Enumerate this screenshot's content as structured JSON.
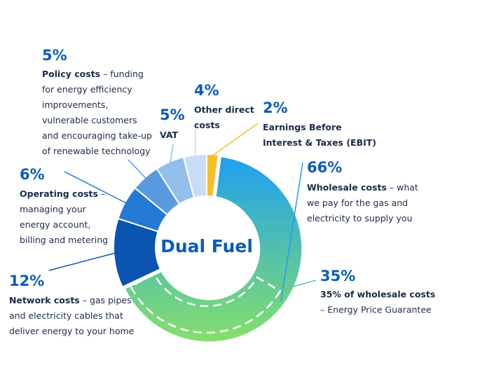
{
  "chart_data": {
    "type": "donut",
    "center_label": "Dual Fuel",
    "segments": [
      {
        "name_lines": [
          "Earnings Before",
          "Interest & Taxes (EBIT)"
        ],
        "description_lines": [],
        "value": 2,
        "value_label": "2%",
        "color": "#f6bf26"
      },
      {
        "name_lines": [
          "Wholesale costs"
        ],
        "description_lines": [
          "– what",
          "we pay for the gas and",
          "electricity to supply you"
        ],
        "value": 66,
        "value_label": "66%",
        "color": "#1e9ff0",
        "color_end": "#86e06a"
      },
      {
        "name_lines": [
          "Network costs"
        ],
        "description_lines": [
          "– gas pipes",
          "and electricity cables that",
          "deliver energy to your home"
        ],
        "value": 12,
        "value_label": "12%",
        "color": "#0a55b0"
      },
      {
        "name_lines": [
          "Operating costs"
        ],
        "description_lines": [
          "–",
          "managing your",
          "energy account,",
          "billing and metering"
        ],
        "value": 6,
        "value_label": "6%",
        "color": "#2479d4"
      },
      {
        "name_lines": [
          "Policy costs"
        ],
        "description_lines": [
          "– funding",
          "for energy efficiency",
          "improvements,",
          "vulnerable customers",
          "and encouraging take-up",
          "of renewable technology"
        ],
        "value": 5,
        "value_label": "5%",
        "color": "#5a9ae0"
      },
      {
        "name_lines": [
          "VAT"
        ],
        "description_lines": [],
        "value": 5,
        "value_label": "5%",
        "color": "#92bfec"
      },
      {
        "name_lines": [
          "Other direct",
          "costs"
        ],
        "description_lines": [],
        "value": 4,
        "value_label": "4%",
        "color": "#c8ddf5"
      }
    ],
    "annotations": [
      {
        "value": 35,
        "value_label": "35%",
        "title": "35% of wholesale costs",
        "text": "– Energy Price Guarantee"
      }
    ]
  }
}
